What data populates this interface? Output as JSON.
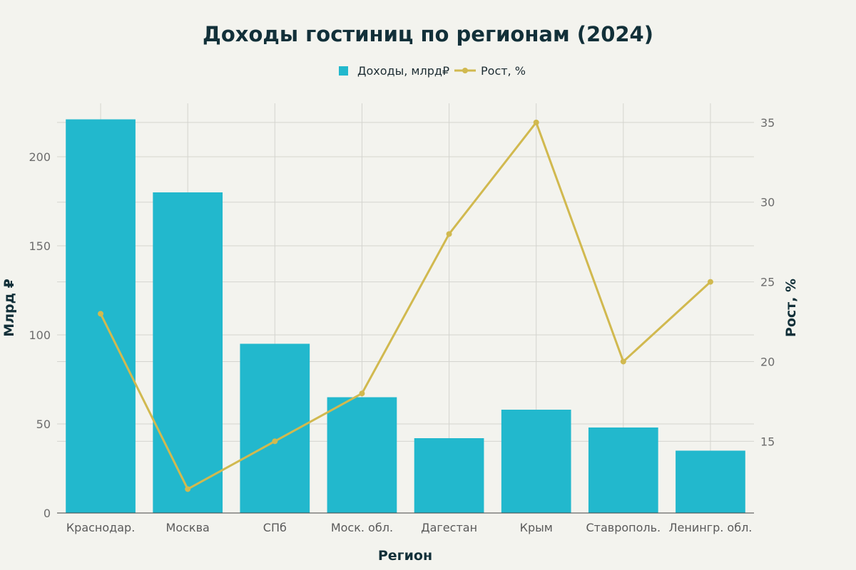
{
  "chart_data": {
    "type": "bar",
    "title": "Доходы гостиниц по регионам (2024)",
    "xlabel": "Регион",
    "ylabel": "Млрд ₽",
    "y2label": "Рост, %",
    "categories": [
      "Краснодар.",
      "Москва",
      "СПб",
      "Моск. обл.",
      "Дагестан",
      "Крым",
      "Ставрополь.",
      "Ленингр. обл."
    ],
    "series": [
      {
        "name": "Доходы, млрд₽",
        "type": "bar",
        "axis": "left",
        "color": "#22b8cd",
        "values": [
          221,
          180,
          95,
          65,
          42,
          58,
          48,
          35
        ]
      },
      {
        "name": "Рост, %",
        "type": "line",
        "axis": "right",
        "color": "#d1b94f",
        "values": [
          23,
          12,
          15,
          18,
          28,
          35,
          20,
          25
        ]
      }
    ],
    "ylim": [
      0,
      230
    ],
    "yticks": [
      0,
      50,
      100,
      150,
      200
    ],
    "y2lim": [
      10.5,
      36.2
    ],
    "y2ticks": [
      15,
      20,
      25,
      30,
      35
    ],
    "legend_position": "top-center",
    "grid": true
  }
}
